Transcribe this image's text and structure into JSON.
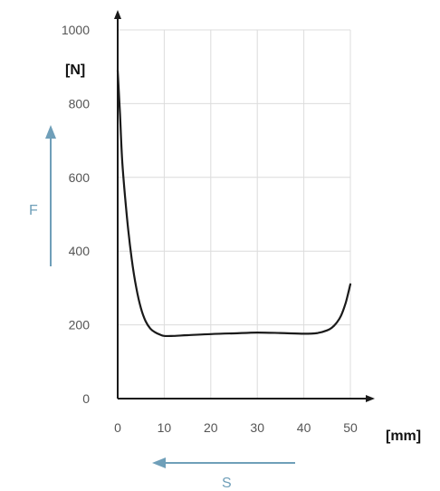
{
  "chart_data": {
    "type": "line",
    "title": "",
    "xlabel": "[mm]",
    "ylabel": "[N]",
    "xlim": [
      0,
      50
    ],
    "ylim": [
      0,
      1000
    ],
    "x_ticks": [
      "0",
      "10",
      "20",
      "30",
      "40",
      "50"
    ],
    "y_ticks": [
      "0",
      "200",
      "400",
      "600",
      "800",
      "1000"
    ],
    "grid": true,
    "series": [
      {
        "x": [
          0,
          0.5,
          1,
          2,
          3,
          4,
          5,
          6,
          7,
          8,
          9,
          10,
          12,
          15,
          20,
          25,
          30,
          35,
          40,
          43,
          45,
          46,
          47,
          48,
          49,
          50
        ],
        "y": [
          890,
          770,
          640,
          490,
          380,
          300,
          245,
          210,
          190,
          180,
          174,
          170,
          170,
          172,
          175,
          177,
          179,
          178,
          176,
          178,
          185,
          192,
          205,
          225,
          260,
          310
        ],
        "color": "#1a1a1a"
      }
    ],
    "direction_arrows": {
      "force": {
        "label": "F",
        "color": "#6f9fb9"
      },
      "travel": {
        "label": "S",
        "color": "#6f9fb9"
      }
    }
  }
}
